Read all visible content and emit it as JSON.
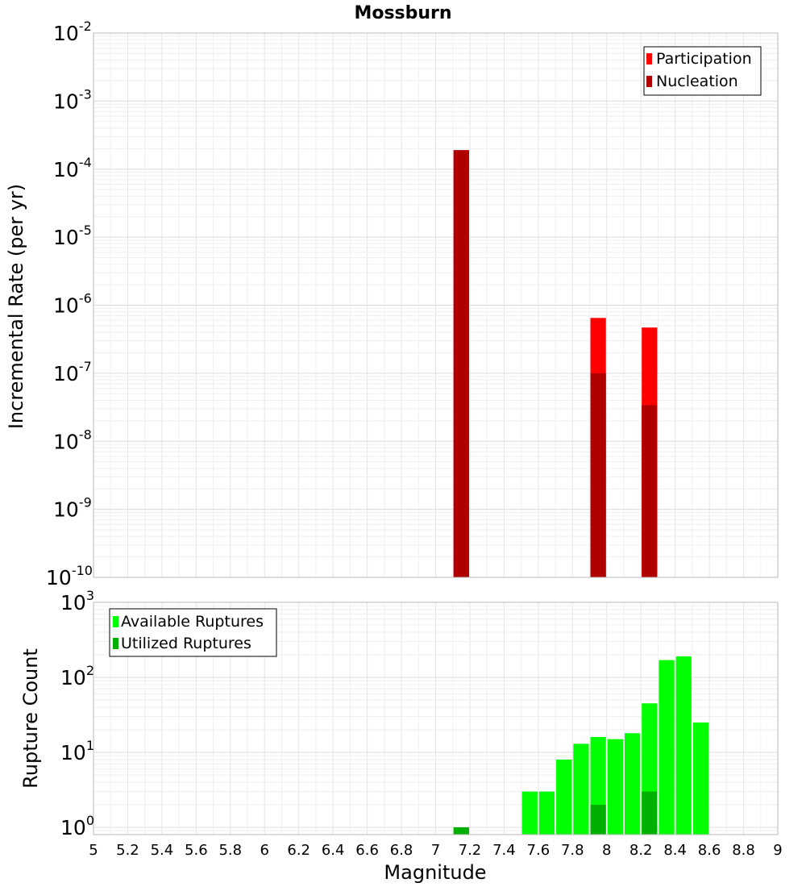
{
  "chart_data": [
    {
      "type": "bar",
      "title": "Mossburn",
      "xlabel": "",
      "ylabel": "Incremental Rate (per yr)",
      "yscale": "log",
      "ylim": [
        1e-10,
        0.01
      ],
      "xlim": [
        5,
        9
      ],
      "bar_width": 0.1,
      "ytick_exponents": [
        -10,
        -9,
        -8,
        -7,
        -6,
        -5,
        -4,
        -3,
        -2
      ],
      "legend": {
        "placement": "top-right",
        "entries": [
          "Participation",
          "Nucleation"
        ]
      },
      "grid": true,
      "series": [
        {
          "name": "Participation",
          "color": "#ff0000",
          "x": [
            7.15,
            7.95,
            8.25
          ],
          "values": [
            0.00019,
            6.5e-07,
            4.7e-07
          ]
        },
        {
          "name": "Nucleation",
          "color": "#b00000",
          "x": [
            7.15,
            7.95,
            8.25
          ],
          "values": [
            0.00019,
            1e-07,
            3.4e-08
          ]
        }
      ]
    },
    {
      "type": "bar",
      "title": "",
      "xlabel": "Magnitude",
      "ylabel": "Rupture Count",
      "yscale": "log",
      "ylim": [
        0.8,
        1000
      ],
      "xlim": [
        5,
        9
      ],
      "bar_width": 0.1,
      "ytick_exponents": [
        0,
        1,
        2,
        3
      ],
      "xticks": [
        "5",
        "5.2",
        "5.4",
        "5.6",
        "5.8",
        "6",
        "6.2",
        "6.4",
        "6.6",
        "6.8",
        "7",
        "7.2",
        "7.4",
        "7.6",
        "7.8",
        "8",
        "8.2",
        "8.4",
        "8.6",
        "8.8",
        "9"
      ],
      "legend": {
        "placement": "top-left",
        "entries": [
          "Available Ruptures",
          "Utilized Ruptures"
        ]
      },
      "grid": true,
      "series": [
        {
          "name": "Available Ruptures",
          "color": "#00ff00",
          "x": [
            7.15,
            7.55,
            7.65,
            7.75,
            7.85,
            7.95,
            8.05,
            8.15,
            8.25,
            8.35,
            8.45,
            8.55
          ],
          "values": [
            1,
            3,
            3,
            8,
            13,
            16,
            15,
            18,
            45,
            170,
            190,
            25
          ]
        },
        {
          "name": "Utilized Ruptures",
          "color": "#00b000",
          "x": [
            7.15,
            7.95,
            8.25
          ],
          "values": [
            1,
            2,
            3
          ]
        }
      ]
    }
  ]
}
